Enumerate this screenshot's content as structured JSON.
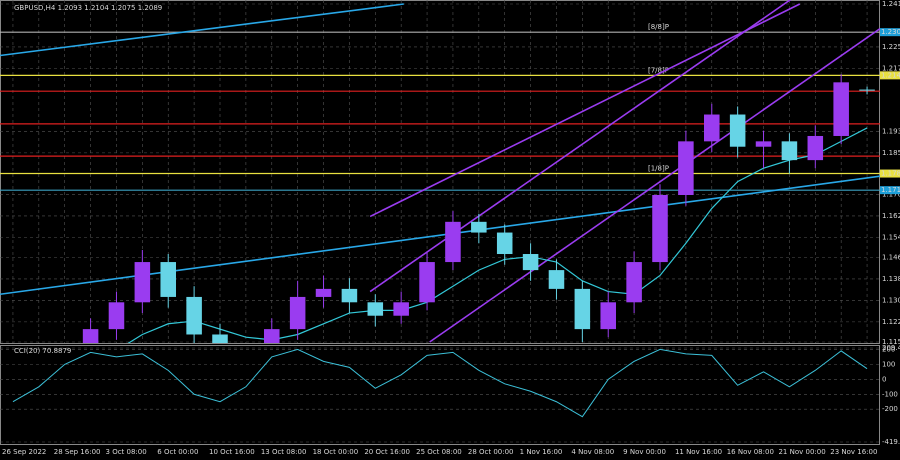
{
  "chart_data": [
    {
      "type": "candlestick",
      "title": "GBPUSD,H4  1.2093 1.2104 1.2075 1.2089",
      "categories": [
        "26 Sep 2022",
        null,
        "28 Sep 16:00",
        null,
        "3 Oct 08:00",
        null,
        "6 Oct 00:00",
        null,
        "10 Oct 16:00",
        null,
        "13 Oct 08:00",
        null,
        "18 Oct 00:00",
        null,
        "20 Oct 16:00",
        null,
        "25 Oct 08:00",
        null,
        "28 Oct 00:00",
        null,
        "1 Nov 16:00",
        null,
        "4 Nov 08:00",
        null,
        "9 Nov 00:00",
        null,
        "11 Nov 16:00",
        null,
        "16 Nov 08:00",
        null,
        "21 Nov 00:00",
        null,
        "23 Nov 16:00",
        null
      ],
      "open": [
        1.08,
        1.085,
        1.095,
        1.105,
        1.12,
        1.13,
        1.145,
        1.132,
        1.118,
        1.105,
        1.108,
        1.12,
        1.132,
        1.135,
        1.13,
        1.125,
        1.13,
        1.145,
        1.16,
        1.156,
        1.148,
        1.142,
        1.135,
        1.12,
        1.13,
        1.145,
        1.17,
        1.19,
        1.2,
        1.188,
        1.19,
        1.183,
        1.192,
        1.2093
      ],
      "high": [
        1.089,
        1.099,
        1.109,
        1.124,
        1.134,
        1.1495,
        1.148,
        1.136,
        1.122,
        1.112,
        1.124,
        1.138,
        1.14,
        1.139,
        1.133,
        1.134,
        1.149,
        1.164,
        1.163,
        1.159,
        1.152,
        1.146,
        1.138,
        1.134,
        1.149,
        1.174,
        1.194,
        1.204,
        1.203,
        1.194,
        1.193,
        1.196,
        1.215,
        1.2104
      ],
      "low": [
        1.076,
        1.081,
        1.091,
        1.101,
        1.116,
        1.126,
        1.128,
        1.114,
        1.1,
        1.101,
        1.104,
        1.116,
        1.128,
        1.126,
        1.121,
        1.122,
        1.127,
        1.142,
        1.152,
        1.144,
        1.138,
        1.131,
        1.1152,
        1.117,
        1.126,
        1.142,
        1.166,
        1.186,
        1.184,
        1.18,
        1.178,
        1.18,
        1.189,
        1.2075
      ],
      "close": [
        1.085,
        1.095,
        1.105,
        1.12,
        1.13,
        1.145,
        1.132,
        1.118,
        1.105,
        1.108,
        1.12,
        1.132,
        1.135,
        1.13,
        1.125,
        1.13,
        1.145,
        1.16,
        1.156,
        1.148,
        1.142,
        1.135,
        1.12,
        1.13,
        1.145,
        1.17,
        1.19,
        1.2,
        1.188,
        1.19,
        1.183,
        1.192,
        1.212,
        1.2089
      ],
      "up_color": "#9a3cf0",
      "down_color": "#66d4e6",
      "moving_average": {
        "color": "#33c8d8",
        "values": [
          1.095,
          1.098,
          1.102,
          1.107,
          1.112,
          1.118,
          1.122,
          1.123,
          1.12,
          1.117,
          1.116,
          1.118,
          1.122,
          1.126,
          1.127,
          1.127,
          1.13,
          1.136,
          1.142,
          1.146,
          1.147,
          1.145,
          1.138,
          1.134,
          1.133,
          1.14,
          1.152,
          1.165,
          1.175,
          1.18,
          1.183,
          1.185,
          1.19,
          1.195
        ]
      },
      "trend_lines": [
        {
          "color": "#29a8e8",
          "x": [
            -0.5,
            15.1
          ],
          "y": [
            1.222,
            1.2412
          ]
        },
        {
          "color": "#29a8e8",
          "x": [
            -0.5,
            33.5
          ],
          "y": [
            1.133,
            1.177
          ]
        },
        {
          "color": "#9a3cf0",
          "x": [
            16.1,
            33.5
          ],
          "y": [
            1.1152,
            1.232
          ]
        },
        {
          "color": "#9a3cf0",
          "x": [
            13.8,
            33.5
          ],
          "y": [
            1.134,
            1.266
          ]
        },
        {
          "color": "#9a3cf0",
          "x": [
            13.8,
            30.4
          ],
          "y": [
            1.162,
            1.2412
          ]
        }
      ],
      "levels": [
        {
          "value": 1.2307,
          "label": "1.2307",
          "tag": "[8/8]P",
          "color": "#b0b0b0",
          "box": "#1e9fd8"
        },
        {
          "value": 1.2146,
          "label": "1.2146",
          "tag": "[7/8]P",
          "color": "#e8e040",
          "box": "#e8e040"
        },
        {
          "value": 1.2087,
          "color": "#e02020"
        },
        {
          "value": 1.1965,
          "color": "#e02020"
        },
        {
          "value": 1.1845,
          "color": "#e02020"
        },
        {
          "value": 1.178,
          "label": "1.1780",
          "tag": "[1/8]P",
          "color": "#e8e040",
          "box": "#e8e040"
        },
        {
          "value": 1.1718,
          "label": "1.1718",
          "color": "#3aa0c0",
          "box": "#1e9fd8"
        }
      ],
      "ylim": [
        1.1152,
        1.2412
      ],
      "yticks": [
        1.1152,
        1.1227,
        1.1307,
        1.1387,
        1.1467,
        1.1542,
        1.1622,
        1.1702,
        1.1857,
        1.1937,
        1.2172,
        1.2252,
        1.2412
      ],
      "grid": true
    },
    {
      "type": "line",
      "title": "CCI(20) 70.8879",
      "color": "#3cc0d8",
      "values": [
        -150,
        -50,
        100,
        180,
        150,
        170,
        60,
        -100,
        -150,
        -50,
        150,
        200,
        120,
        80,
        -60,
        30,
        160,
        180,
        60,
        -30,
        -80,
        -150,
        -250,
        0,
        120,
        200,
        170,
        160,
        -40,
        50,
        -50,
        60,
        190,
        70.8879
      ],
      "ylim": [
        -419.22,
        209.432
      ],
      "yticks": [
        {
          "value": -419.22,
          "label": "-419.220"
        },
        -200,
        -100,
        0,
        100,
        200,
        209.432
      ],
      "grid": true
    }
  ]
}
